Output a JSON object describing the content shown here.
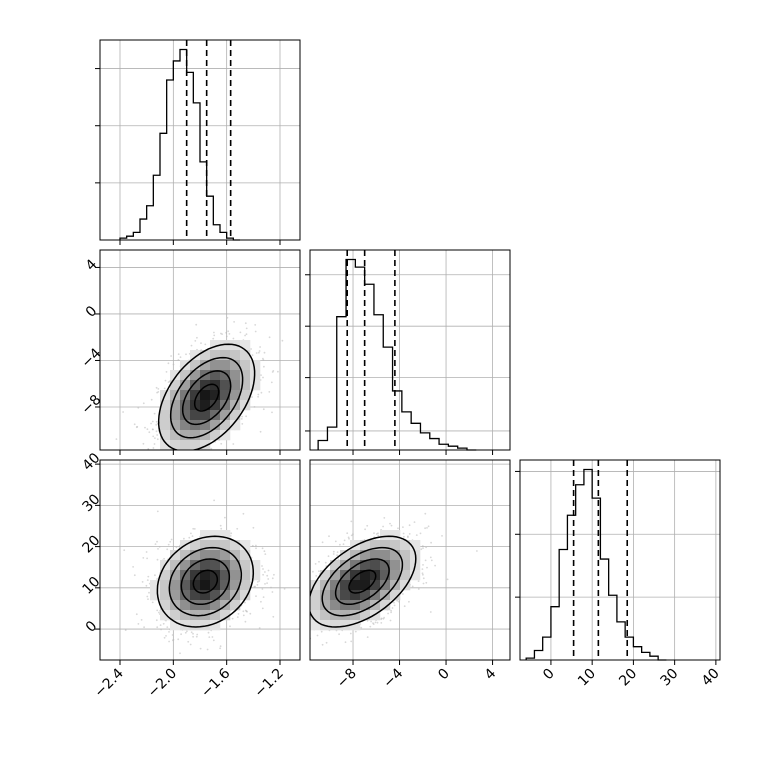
{
  "chart_data": {
    "type": "corner",
    "grid": true,
    "colors": {
      "line": "#000000",
      "grid": "#b0b0b0",
      "scatter": "#b8b8b8"
    },
    "parameters": [
      {
        "range": [
          -2.55,
          -1.05
        ],
        "ticks": [
          -2.4,
          -2.0,
          -1.6,
          -1.2
        ],
        "tick_labels": [
          "−2.4",
          "−2.0",
          "−1.6",
          "−1.2"
        ],
        "quantiles": [
          -1.9,
          -1.75,
          -1.57
        ]
      },
      {
        "range": [
          -11.7,
          5.5
        ],
        "ticks": [
          -8,
          -4,
          0,
          4
        ],
        "tick_labels": [
          "−8",
          "−4",
          "0",
          "4"
        ],
        "quantiles": [
          -8.5,
          -7.0,
          -4.4
        ]
      },
      {
        "range": [
          -7.5,
          41
        ],
        "ticks": [
          0,
          10,
          20,
          30,
          40
        ],
        "tick_labels": [
          "0",
          "10",
          "20",
          "30",
          "40"
        ],
        "quantiles": [
          5.5,
          11.5,
          18.5
        ]
      }
    ],
    "histograms": [
      {
        "param": 0,
        "bin_start": -2.4,
        "bin_width": 0.05,
        "counts": [
          1,
          2,
          4,
          11,
          18,
          34,
          56,
          84,
          94,
          100,
          88,
          72,
          41,
          23,
          8,
          4,
          1,
          0
        ],
        "ymax": 105,
        "yticks": [
          30,
          60,
          90
        ]
      },
      {
        "param": 1,
        "bin_start": -11.0,
        "bin_width": 0.8,
        "counts": [
          5,
          12,
          70,
          100,
          96,
          87,
          71,
          54,
          31,
          20,
          14,
          9,
          6,
          3,
          2,
          1,
          0
        ],
        "ymax": 105,
        "yticks": [
          10,
          38,
          65,
          92
        ]
      },
      {
        "param": 2,
        "bin_start": -6.0,
        "bin_width": 2.0,
        "counts": [
          1,
          5,
          12,
          28,
          58,
          76,
          92,
          100,
          85,
          53,
          34,
          20,
          12,
          7,
          4,
          2,
          0
        ],
        "ymax": 105,
        "yticks": [
          33,
          66,
          99
        ]
      }
    ],
    "joint": [
      {
        "x": 0,
        "y": 1,
        "mean": [
          -1.75,
          -7.2
        ],
        "sd": [
          0.18,
          2.3
        ],
        "rho": 0.45
      },
      {
        "x": 0,
        "y": 2,
        "mean": [
          -1.76,
          11.5
        ],
        "sd": [
          0.18,
          5.5
        ],
        "rho": 0.2
      },
      {
        "x": 1,
        "y": 2,
        "mean": [
          -7.2,
          11.5
        ],
        "sd": [
          2.3,
          5.5
        ],
        "rho": 0.5
      }
    ],
    "contour_levels": [
      0.5,
      1.0,
      1.5,
      2.0
    ]
  }
}
